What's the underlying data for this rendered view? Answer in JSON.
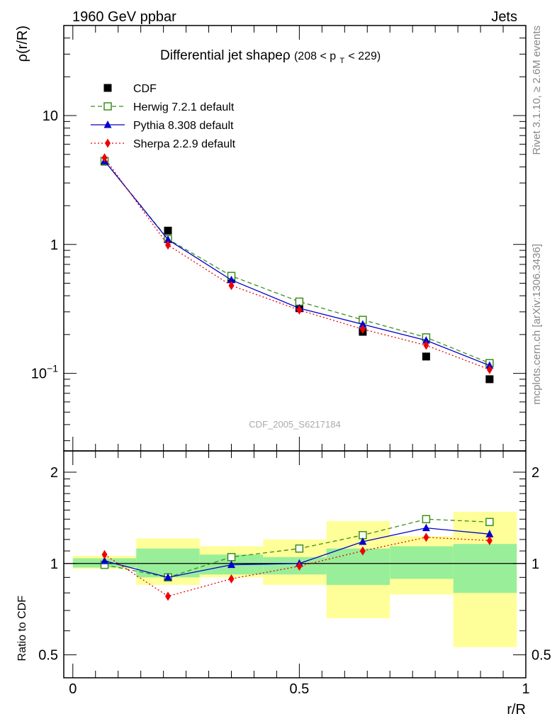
{
  "header": {
    "left": "1960 GeV ppbar",
    "right": "Jets"
  },
  "side_text": {
    "rivet": "Rivet 3.1.10, ≥ 2.6M events",
    "mcplots": "mcplots.cern.ch [arXiv:1306.3436]"
  },
  "watermark": "CDF_2005_S6217184",
  "chart_data": [
    {
      "type": "line",
      "panel": "main",
      "title_main": "Differential jet shapeρ",
      "title_range": "(208 < p",
      "title_sub": "T",
      "title_tail": " < 229)",
      "ylabel": "ρ(r/R)",
      "yscale": "log",
      "ylim": [
        0.025,
        50
      ],
      "xlim": [
        -0.02,
        1.0
      ],
      "yticks": [
        {
          "label": "10",
          "value": 10
        },
        {
          "label": "1",
          "value": 1
        },
        {
          "label": "10",
          "sup": "−1",
          "value": 0.1
        }
      ],
      "x": [
        0.07,
        0.21,
        0.35,
        0.5,
        0.64,
        0.78,
        0.92
      ],
      "series": [
        {
          "name": "CDF",
          "kind": "data",
          "color": "#000000",
          "marker": "square-filled",
          "values": [
            4.4,
            1.28,
            0.54,
            0.32,
            0.21,
            0.135,
            0.09
          ]
        },
        {
          "name": "Herwig 7.2.1 default",
          "kind": "mc",
          "color": "#3a8f1a",
          "marker": "square-open",
          "dash": "6,4",
          "values": [
            4.45,
            1.1,
            0.57,
            0.36,
            0.26,
            0.19,
            0.12
          ]
        },
        {
          "name": "Pythia 8.308 default",
          "kind": "mc",
          "color": "#0000cc",
          "marker": "triangle",
          "dash": "",
          "values": [
            4.45,
            1.09,
            0.53,
            0.32,
            0.24,
            0.18,
            0.115
          ]
        },
        {
          "name": "Sherpa 2.2.9 default",
          "kind": "mc",
          "color": "#ee0000",
          "marker": "diamond",
          "dash": "2,3",
          "values": [
            4.7,
            0.99,
            0.48,
            0.31,
            0.22,
            0.165,
            0.107
          ]
        }
      ]
    },
    {
      "type": "line",
      "panel": "ratio",
      "ylabel": "Ratio to CDF",
      "xlabel": "r/R",
      "yscale": "log",
      "ylim": [
        0.42,
        2.35
      ],
      "xlim": [
        -0.02,
        1.0
      ],
      "yticks": [
        {
          "label": "2",
          "value": 2
        },
        {
          "label": "1",
          "value": 1
        },
        {
          "label": "0.5",
          "value": 0.5
        }
      ],
      "xticks": [
        {
          "label": "0",
          "value": 0
        },
        {
          "label": "0.5",
          "value": 0.5
        },
        {
          "label": "1",
          "value": 1
        }
      ],
      "bands": {
        "edges": [
          0.0,
          0.14,
          0.28,
          0.42,
          0.56,
          0.7,
          0.84,
          0.98
        ],
        "stat": [
          [
            0.97,
            1.04
          ],
          [
            0.9,
            1.12
          ],
          [
            0.92,
            1.07
          ],
          [
            0.92,
            1.05
          ],
          [
            0.85,
            1.12
          ],
          [
            0.89,
            1.14
          ],
          [
            0.8,
            1.16
          ]
        ],
        "total": [
          [
            0.96,
            1.06
          ],
          [
            0.85,
            1.21
          ],
          [
            0.9,
            1.14
          ],
          [
            0.85,
            1.2
          ],
          [
            0.66,
            1.38
          ],
          [
            0.79,
            1.23
          ],
          [
            0.53,
            1.48
          ]
        ],
        "stat_color": "#99ee99",
        "total_color": "#ffff99"
      },
      "x": [
        0.07,
        0.21,
        0.35,
        0.5,
        0.64,
        0.78,
        0.92
      ],
      "series": [
        {
          "name": "Herwig 7.2.1 default",
          "color": "#3a8f1a",
          "marker": "square-open",
          "dash": "6,4",
          "values": [
            0.99,
            0.9,
            1.05,
            1.12,
            1.24,
            1.4,
            1.37
          ]
        },
        {
          "name": "Pythia 8.308 default",
          "color": "#0000cc",
          "marker": "triangle",
          "dash": "",
          "values": [
            1.02,
            0.9,
            0.99,
            1.0,
            1.18,
            1.31,
            1.25
          ],
          "errors": [
            0,
            0,
            0,
            0,
            0,
            0,
            0.04
          ]
        },
        {
          "name": "Sherpa 2.2.9 default",
          "color": "#ee0000",
          "marker": "diamond",
          "dash": "2,3",
          "values": [
            1.07,
            0.78,
            0.89,
            0.98,
            1.1,
            1.22,
            1.19
          ],
          "errors": [
            0,
            0,
            0,
            0,
            0,
            0,
            0.03
          ]
        }
      ]
    }
  ]
}
